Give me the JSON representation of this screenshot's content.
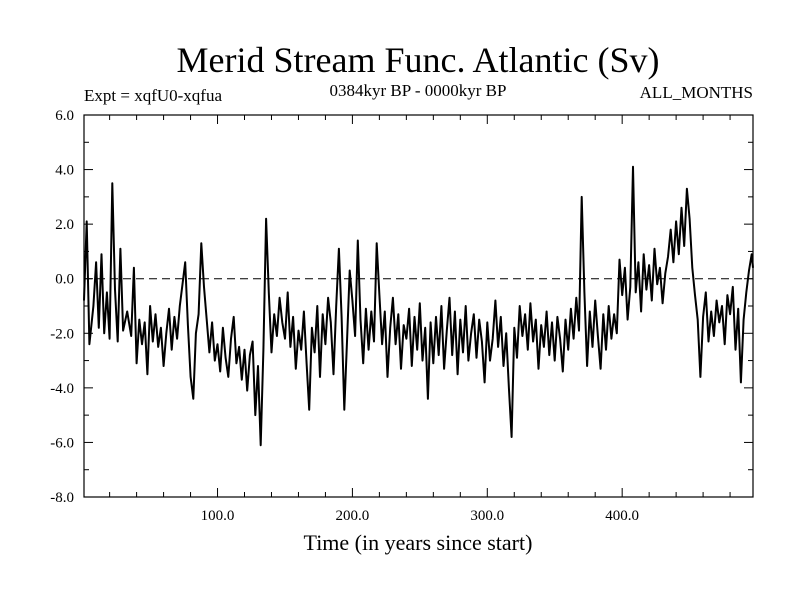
{
  "chart_data": {
    "type": "line",
    "title": "Merid Stream Func. Atlantic (Sv)",
    "subtitle_left": "Expt = xqfU0-xqfua",
    "subtitle_center": "0384kyr BP - 0000kyr BP",
    "subtitle_right": "ALL_MONTHS",
    "xlabel": "Time (in years since start)",
    "ylabel": "",
    "xlim": [
      1,
      497
    ],
    "ylim": [
      -8,
      6
    ],
    "xticks": [
      100,
      200,
      300,
      400
    ],
    "xtick_labels": [
      "100.0",
      "200.0",
      "300.0",
      "400.0"
    ],
    "yticks": [
      -8,
      -6,
      -4,
      -2,
      0,
      2,
      4,
      6
    ],
    "ytick_labels": [
      "-8.0",
      "-6.0",
      "-4.0",
      "-2.0",
      "0.0",
      "2.0",
      "4.0",
      "6.0"
    ],
    "reference_line": {
      "y": 0,
      "style": "dashed"
    },
    "series": [
      {
        "name": "Merid Stream Func. Atlantic",
        "points": [
          [
            1,
            -0.8
          ],
          [
            3,
            2.1
          ],
          [
            5,
            -2.4
          ],
          [
            8,
            -1.0
          ],
          [
            10,
            0.6
          ],
          [
            12,
            -1.8
          ],
          [
            14,
            0.9
          ],
          [
            16,
            -2.0
          ],
          [
            18,
            -0.5
          ],
          [
            20,
            -2.2
          ],
          [
            22,
            3.5
          ],
          [
            24,
            -0.4
          ],
          [
            26,
            -2.3
          ],
          [
            28,
            1.1
          ],
          [
            30,
            -1.9
          ],
          [
            33,
            -1.2
          ],
          [
            36,
            -2.1
          ],
          [
            38,
            0.4
          ],
          [
            40,
            -3.1
          ],
          [
            42,
            -1.5
          ],
          [
            44,
            -2.4
          ],
          [
            46,
            -1.6
          ],
          [
            48,
            -3.5
          ],
          [
            50,
            -1.0
          ],
          [
            52,
            -2.3
          ],
          [
            54,
            -1.3
          ],
          [
            56,
            -2.5
          ],
          [
            58,
            -1.8
          ],
          [
            60,
            -3.2
          ],
          [
            62,
            -2.0
          ],
          [
            64,
            -1.1
          ],
          [
            66,
            -2.6
          ],
          [
            68,
            -1.4
          ],
          [
            70,
            -2.2
          ],
          [
            72,
            -1.0
          ],
          [
            74,
            -0.2
          ],
          [
            76,
            0.6
          ],
          [
            78,
            -1.7
          ],
          [
            80,
            -3.6
          ],
          [
            82,
            -4.4
          ],
          [
            84,
            -2.0
          ],
          [
            86,
            -1.3
          ],
          [
            88,
            1.3
          ],
          [
            90,
            -0.3
          ],
          [
            92,
            -1.5
          ],
          [
            94,
            -2.7
          ],
          [
            96,
            -1.6
          ],
          [
            98,
            -3.0
          ],
          [
            100,
            -2.4
          ],
          [
            102,
            -3.4
          ],
          [
            104,
            -1.8
          ],
          [
            106,
            -2.9
          ],
          [
            108,
            -3.6
          ],
          [
            110,
            -2.2
          ],
          [
            112,
            -1.4
          ],
          [
            114,
            -3.1
          ],
          [
            116,
            -2.5
          ],
          [
            118,
            -3.7
          ],
          [
            120,
            -2.6
          ],
          [
            122,
            -4.1
          ],
          [
            124,
            -2.8
          ],
          [
            126,
            -2.3
          ],
          [
            128,
            -5.0
          ],
          [
            130,
            -3.2
          ],
          [
            132,
            -6.1
          ],
          [
            134,
            -2.6
          ],
          [
            136,
            2.2
          ],
          [
            138,
            -0.5
          ],
          [
            140,
            -2.7
          ],
          [
            142,
            -1.3
          ],
          [
            144,
            -2.1
          ],
          [
            146,
            -0.7
          ],
          [
            148,
            -1.6
          ],
          [
            150,
            -2.2
          ],
          [
            152,
            -0.5
          ],
          [
            154,
            -2.5
          ],
          [
            156,
            -1.4
          ],
          [
            158,
            -3.3
          ],
          [
            160,
            -1.9
          ],
          [
            162,
            -2.6
          ],
          [
            164,
            -1.2
          ],
          [
            166,
            -3.1
          ],
          [
            168,
            -4.8
          ],
          [
            170,
            -1.8
          ],
          [
            172,
            -2.7
          ],
          [
            174,
            -1.0
          ],
          [
            176,
            -3.6
          ],
          [
            178,
            -1.3
          ],
          [
            180,
            -2.4
          ],
          [
            182,
            -0.7
          ],
          [
            184,
            -1.6
          ],
          [
            186,
            -3.5
          ],
          [
            188,
            -1.0
          ],
          [
            190,
            1.1
          ],
          [
            192,
            -1.4
          ],
          [
            194,
            -4.8
          ],
          [
            196,
            -2.3
          ],
          [
            198,
            0.3
          ],
          [
            200,
            -0.8
          ],
          [
            202,
            -2.1
          ],
          [
            204,
            1.4
          ],
          [
            206,
            -1.5
          ],
          [
            208,
            -3.1
          ],
          [
            210,
            -1.1
          ],
          [
            212,
            -2.6
          ],
          [
            214,
            -1.2
          ],
          [
            216,
            -2.3
          ],
          [
            218,
            1.3
          ],
          [
            220,
            -0.6
          ],
          [
            222,
            -2.4
          ],
          [
            224,
            -1.2
          ],
          [
            226,
            -3.6
          ],
          [
            228,
            -1.8
          ],
          [
            230,
            -0.7
          ],
          [
            232,
            -2.4
          ],
          [
            234,
            -1.3
          ],
          [
            236,
            -3.3
          ],
          [
            238,
            -1.7
          ],
          [
            240,
            -2.2
          ],
          [
            242,
            -1.1
          ],
          [
            244,
            -3.2
          ],
          [
            246,
            -1.4
          ],
          [
            248,
            -2.6
          ],
          [
            250,
            -0.9
          ],
          [
            252,
            -3.0
          ],
          [
            254,
            -1.8
          ],
          [
            256,
            -4.4
          ],
          [
            258,
            -1.6
          ],
          [
            260,
            -3.1
          ],
          [
            262,
            -1.4
          ],
          [
            264,
            -2.8
          ],
          [
            266,
            -1.0
          ],
          [
            268,
            -3.3
          ],
          [
            270,
            -1.9
          ],
          [
            272,
            -0.7
          ],
          [
            274,
            -2.8
          ],
          [
            276,
            -1.2
          ],
          [
            278,
            -3.5
          ],
          [
            280,
            -1.5
          ],
          [
            282,
            -2.7
          ],
          [
            284,
            -1.0
          ],
          [
            286,
            -3.0
          ],
          [
            288,
            -2.0
          ],
          [
            290,
            -1.3
          ],
          [
            292,
            -2.9
          ],
          [
            294,
            -1.5
          ],
          [
            296,
            -2.3
          ],
          [
            298,
            -3.8
          ],
          [
            300,
            -1.6
          ],
          [
            302,
            -3.0
          ],
          [
            304,
            -2.2
          ],
          [
            306,
            -0.8
          ],
          [
            308,
            -2.5
          ],
          [
            310,
            -1.4
          ],
          [
            312,
            -3.2
          ],
          [
            314,
            -2.0
          ],
          [
            316,
            -4.0
          ],
          [
            318,
            -5.8
          ],
          [
            320,
            -1.8
          ],
          [
            322,
            -2.9
          ],
          [
            324,
            -1.0
          ],
          [
            326,
            -2.1
          ],
          [
            328,
            -1.3
          ],
          [
            330,
            -2.6
          ],
          [
            332,
            -0.9
          ],
          [
            334,
            -2.3
          ],
          [
            336,
            -1.5
          ],
          [
            338,
            -3.3
          ],
          [
            340,
            -1.7
          ],
          [
            342,
            -2.5
          ],
          [
            344,
            -1.2
          ],
          [
            346,
            -2.8
          ],
          [
            348,
            -1.6
          ],
          [
            350,
            -3.0
          ],
          [
            352,
            -1.4
          ],
          [
            354,
            -2.2
          ],
          [
            356,
            -3.4
          ],
          [
            358,
            -1.5
          ],
          [
            360,
            -2.6
          ],
          [
            362,
            -1.1
          ],
          [
            364,
            -2.2
          ],
          [
            366,
            -0.7
          ],
          [
            368,
            -1.9
          ],
          [
            370,
            3.0
          ],
          [
            372,
            -0.5
          ],
          [
            374,
            -3.2
          ],
          [
            376,
            -1.2
          ],
          [
            378,
            -2.5
          ],
          [
            380,
            -0.8
          ],
          [
            382,
            -2.1
          ],
          [
            384,
            -3.3
          ],
          [
            386,
            -1.3
          ],
          [
            388,
            -2.6
          ],
          [
            390,
            -1.0
          ],
          [
            392,
            -2.2
          ],
          [
            394,
            -1.3
          ],
          [
            396,
            -2.0
          ],
          [
            398,
            0.7
          ],
          [
            400,
            -0.6
          ],
          [
            402,
            0.4
          ],
          [
            404,
            -1.5
          ],
          [
            406,
            -0.3
          ],
          [
            408,
            4.1
          ],
          [
            410,
            -0.5
          ],
          [
            412,
            0.6
          ],
          [
            414,
            -1.2
          ],
          [
            416,
            0.9
          ],
          [
            418,
            -0.4
          ],
          [
            420,
            0.5
          ],
          [
            422,
            -0.8
          ],
          [
            424,
            1.1
          ],
          [
            426,
            -0.2
          ],
          [
            428,
            0.4
          ],
          [
            430,
            -0.9
          ],
          [
            432,
            0.2
          ],
          [
            434,
            0.8
          ],
          [
            436,
            1.8
          ],
          [
            438,
            0.6
          ],
          [
            440,
            2.1
          ],
          [
            442,
            0.9
          ],
          [
            444,
            2.6
          ],
          [
            446,
            1.2
          ],
          [
            448,
            3.3
          ],
          [
            450,
            2.2
          ],
          [
            452,
            0.4
          ],
          [
            454,
            -0.6
          ],
          [
            456,
            -1.5
          ],
          [
            458,
            -3.6
          ],
          [
            460,
            -1.4
          ],
          [
            462,
            -0.5
          ],
          [
            464,
            -2.3
          ],
          [
            466,
            -1.2
          ],
          [
            468,
            -2.1
          ],
          [
            470,
            -0.8
          ],
          [
            472,
            -1.6
          ],
          [
            474,
            -1.0
          ],
          [
            476,
            -2.4
          ],
          [
            478,
            -0.6
          ],
          [
            480,
            -1.3
          ],
          [
            482,
            -0.3
          ],
          [
            484,
            -2.6
          ],
          [
            486,
            -1.1
          ],
          [
            488,
            -3.8
          ],
          [
            490,
            -1.5
          ],
          [
            492,
            -0.5
          ],
          [
            494,
            0.3
          ],
          [
            496,
            0.9
          ],
          [
            497,
            0.4
          ]
        ]
      }
    ]
  }
}
